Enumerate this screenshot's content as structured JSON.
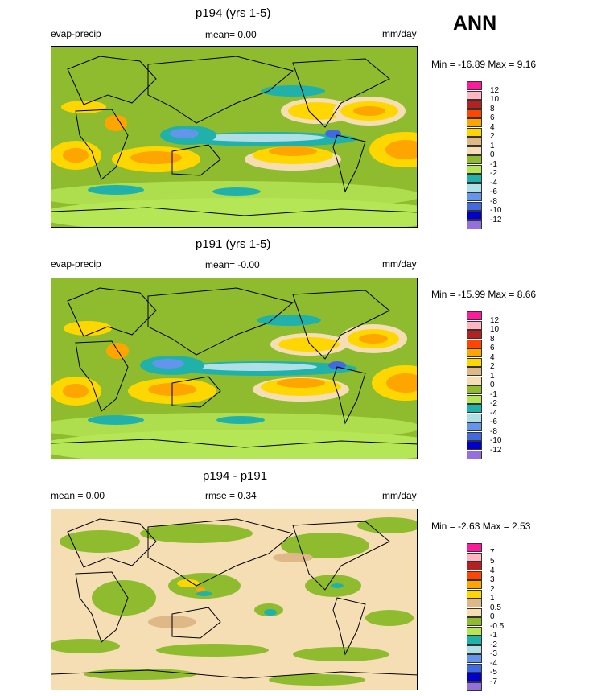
{
  "season": "ANN",
  "variable": "evap-precip",
  "units": "mm/day",
  "panels": [
    {
      "title": "p194 (yrs 1-5)",
      "left_text": "evap-precip",
      "center_text": "mean=  0.00",
      "right_text": "mm/day",
      "minmax": "Min = -16.89 Max =   9.16",
      "cbar_labels": [
        "12",
        "10",
        "8",
        "6",
        "4",
        "2",
        "1",
        "0",
        "-1",
        "-2",
        "-4",
        "-6",
        "-8",
        "-10",
        "-12"
      ]
    },
    {
      "title": "p191 (yrs 1-5)",
      "left_text": "evap-precip",
      "center_text": "mean=  -0.00",
      "right_text": "mm/day",
      "minmax": "Min = -15.99 Max =   8.66",
      "cbar_labels": [
        "12",
        "10",
        "8",
        "6",
        "4",
        "2",
        "1",
        "0",
        "-1",
        "-2",
        "-4",
        "-6",
        "-8",
        "-10",
        "-12"
      ]
    },
    {
      "title": "p194 - p191",
      "left_text": "mean =   0.00",
      "center_text": "rmse =   0.34",
      "right_text": "mm/day",
      "minmax": "Min =  -2.63 Max =   2.53",
      "cbar_labels": [
        "7",
        "5",
        "4",
        "3",
        "2",
        "1",
        "0.5",
        "0",
        "-0.5",
        "-1",
        "-2",
        "-3",
        "-4",
        "-5",
        "-7"
      ]
    }
  ],
  "colors": {
    "levels_top_to_bottom": [
      "#ff1a9c",
      "#ffb6c1",
      "#b22222",
      "#ff4500",
      "#ffa500",
      "#ffd700",
      "#deb887",
      "#f5deb3",
      "#8fbc2f",
      "#b5e655",
      "#20b2aa",
      "#b0e0e6",
      "#6495ed",
      "#4169e1",
      "#0000cd",
      "#9370db"
    ],
    "land_outline": "#000000"
  },
  "chart_data": [
    {
      "type": "heatmap",
      "title": "p194 (yrs 1-5)",
      "field": "evap-precip",
      "units": "mm/day",
      "mean": 0.0,
      "min": -16.89,
      "max": 9.16,
      "levels": [
        12,
        10,
        8,
        6,
        4,
        2,
        1,
        0,
        -1,
        -2,
        -4,
        -6,
        -8,
        -10,
        -12
      ],
      "projection": "cylindrical equidistant, global"
    },
    {
      "type": "heatmap",
      "title": "p191 (yrs 1-5)",
      "field": "evap-precip",
      "units": "mm/day",
      "mean": -0.0,
      "min": -15.99,
      "max": 8.66,
      "levels": [
        12,
        10,
        8,
        6,
        4,
        2,
        1,
        0,
        -1,
        -2,
        -4,
        -6,
        -8,
        -10,
        -12
      ],
      "projection": "cylindrical equidistant, global"
    },
    {
      "type": "heatmap",
      "title": "p194 - p191",
      "field": "evap-precip difference",
      "units": "mm/day",
      "mean": 0.0,
      "rmse": 0.34,
      "min": -2.63,
      "max": 2.53,
      "levels": [
        7,
        5,
        4,
        3,
        2,
        1,
        0.5,
        0,
        -0.5,
        -1,
        -2,
        -3,
        -4,
        -5,
        -7
      ],
      "projection": "cylindrical equidistant, global"
    }
  ]
}
